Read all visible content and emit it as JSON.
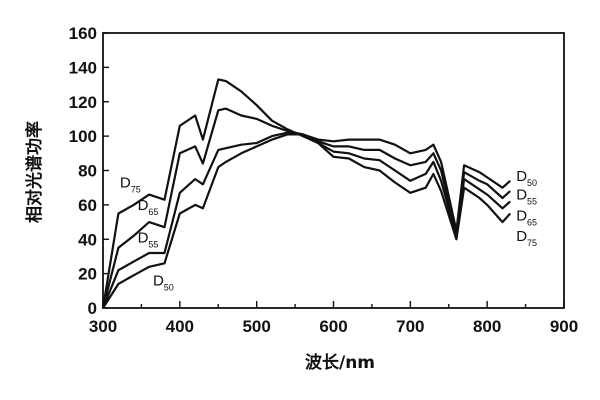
{
  "chart_data": {
    "type": "line",
    "title": "",
    "xlabel": "波长/nm",
    "ylabel": "相对光谱功率",
    "xlim": [
      300,
      900
    ],
    "ylim": [
      0,
      160
    ],
    "xticks": [
      300,
      400,
      500,
      600,
      700,
      800,
      900
    ],
    "yticks": [
      0,
      20,
      40,
      60,
      80,
      100,
      120,
      140,
      160
    ],
    "grid": false,
    "legend_position": "inline labels at curve ends",
    "x": [
      300,
      320,
      340,
      360,
      380,
      400,
      420,
      430,
      450,
      460,
      480,
      500,
      520,
      540,
      560,
      580,
      600,
      620,
      640,
      660,
      680,
      700,
      720,
      730,
      740,
      760,
      770,
      790,
      800,
      820,
      830
    ],
    "series": [
      {
        "name": "D75",
        "label_main": "D",
        "label_sub": "75",
        "values": [
          0,
          55,
          60,
          66,
          63,
          106,
          112,
          98,
          133,
          132,
          126,
          118,
          109,
          104,
          100,
          96,
          88,
          87,
          82,
          80,
          73,
          67,
          70,
          78,
          68,
          40,
          70,
          64,
          60,
          50,
          55
        ]
      },
      {
        "name": "D65",
        "label_main": "D",
        "label_sub": "65",
        "values": [
          0,
          35,
          42,
          50,
          47,
          90,
          94,
          84,
          115,
          116,
          112,
          110,
          106,
          103,
          101,
          96,
          91,
          90,
          87,
          86,
          80,
          74,
          78,
          85,
          74,
          42,
          75,
          69,
          66,
          58,
          62
        ]
      },
      {
        "name": "D55",
        "label_main": "D",
        "label_sub": "55",
        "values": [
          0,
          22,
          27,
          32,
          32,
          67,
          75,
          72,
          92,
          93,
          95,
          96,
          100,
          102,
          101,
          97,
          94,
          94,
          92,
          92,
          87,
          83,
          85,
          90,
          80,
          43,
          79,
          74,
          72,
          64,
          68
        ]
      },
      {
        "name": "D50",
        "label_main": "D",
        "label_sub": "50",
        "values": [
          0,
          14,
          19,
          24,
          26,
          55,
          60,
          58,
          82,
          85,
          90,
          94,
          98,
          101,
          101,
          98,
          97,
          98,
          98,
          98,
          95,
          90,
          92,
          95,
          85,
          45,
          83,
          79,
          76,
          70,
          74
        ]
      }
    ],
    "left_labels": [
      {
        "series": "D75",
        "x_nm": 322,
        "y_val": 70
      },
      {
        "series": "D65",
        "x_nm": 345,
        "y_val": 57
      },
      {
        "series": "D55",
        "x_nm": 345,
        "y_val": 38
      },
      {
        "series": "D50",
        "x_nm": 365,
        "y_val": 13
      }
    ],
    "right_labels": [
      {
        "series": "D50",
        "y_val": 74
      },
      {
        "series": "D55",
        "y_val": 63
      },
      {
        "series": "D65",
        "y_val": 51
      },
      {
        "series": "D75",
        "y_val": 39
      }
    ]
  },
  "colors": {
    "line": "#111111",
    "axis": "#111111",
    "background": "#ffffff"
  }
}
